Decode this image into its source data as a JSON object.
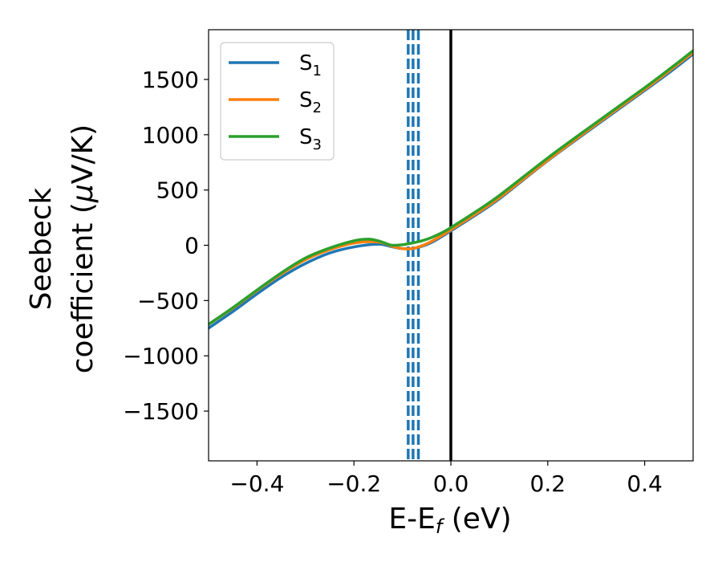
{
  "chart_data": {
    "type": "line",
    "xlabel": {
      "main": "E-E",
      "sub": "f",
      "tail": " (eV)"
    },
    "ylabel": {
      "line1": "Seebeck",
      "line2_prefix": "coefficient  (",
      "line2_mu": "μ",
      "line2_suffix": "V/K)"
    },
    "xlim": [
      -0.5,
      0.5
    ],
    "ylim": [
      -1950,
      1950
    ],
    "grid": false,
    "legend_position": "upper-left",
    "x_ticks": [
      -0.4,
      -0.2,
      0.0,
      0.2,
      0.4
    ],
    "x_tick_labels": [
      "−0.4",
      "−0.2",
      "0.0",
      "0.2",
      "0.4"
    ],
    "y_ticks": [
      -1500,
      -1000,
      -500,
      0,
      500,
      1000,
      1500
    ],
    "y_tick_labels": [
      "−1500",
      "−1000",
      "−500",
      "0",
      "500",
      "1000",
      "1500"
    ],
    "vertical_lines": [
      {
        "x": -0.088,
        "style": "dashed",
        "color": "#1f77b4"
      },
      {
        "x": -0.078,
        "style": "dashed",
        "color": "#1f77b4"
      },
      {
        "x": -0.067,
        "style": "dashed",
        "color": "#1f77b4"
      },
      {
        "x": 0.0,
        "style": "solid",
        "color": "#000000"
      }
    ],
    "series": [
      {
        "name": "S",
        "sub": "1",
        "color": "#1f77b4",
        "x": [
          -0.5,
          -0.45,
          -0.4,
          -0.35,
          -0.3,
          -0.25,
          -0.2,
          -0.15,
          -0.12,
          -0.1,
          -0.08,
          -0.06,
          -0.04,
          -0.02,
          0.0,
          0.05,
          0.1,
          0.2,
          0.3,
          0.4,
          0.45,
          0.5
        ],
        "values": [
          -750,
          -600,
          -440,
          -290,
          -165,
          -70,
          -15,
          10,
          -15,
          -30,
          -30,
          -10,
          25,
          75,
          130,
          270,
          420,
          765,
          1085,
          1400,
          1560,
          1730
        ]
      },
      {
        "name": "S",
        "sub": "2",
        "color": "#ff7f0e",
        "x": [
          -0.5,
          -0.45,
          -0.4,
          -0.35,
          -0.3,
          -0.25,
          -0.2,
          -0.15,
          -0.12,
          -0.1,
          -0.08,
          -0.06,
          -0.04,
          -0.02,
          0.0,
          0.05,
          0.1,
          0.2,
          0.3,
          0.4,
          0.45,
          0.5
        ],
        "values": [
          -715,
          -570,
          -410,
          -260,
          -130,
          -40,
          20,
          30,
          -10,
          -30,
          -30,
          -5,
          35,
          85,
          140,
          280,
          430,
          770,
          1095,
          1410,
          1575,
          1745
        ]
      },
      {
        "name": "S",
        "sub": "3",
        "color": "#2ca02c",
        "x": [
          -0.5,
          -0.45,
          -0.4,
          -0.35,
          -0.3,
          -0.25,
          -0.2,
          -0.17,
          -0.15,
          -0.13,
          -0.12,
          -0.1,
          -0.08,
          -0.06,
          -0.04,
          -0.02,
          0.0,
          0.05,
          0.1,
          0.2,
          0.3,
          0.4,
          0.45,
          0.5
        ],
        "values": [
          -715,
          -565,
          -405,
          -250,
          -115,
          -25,
          40,
          55,
          40,
          10,
          0,
          5,
          20,
          40,
          70,
          110,
          160,
          300,
          450,
          790,
          1110,
          1425,
          1590,
          1760
        ]
      }
    ]
  }
}
